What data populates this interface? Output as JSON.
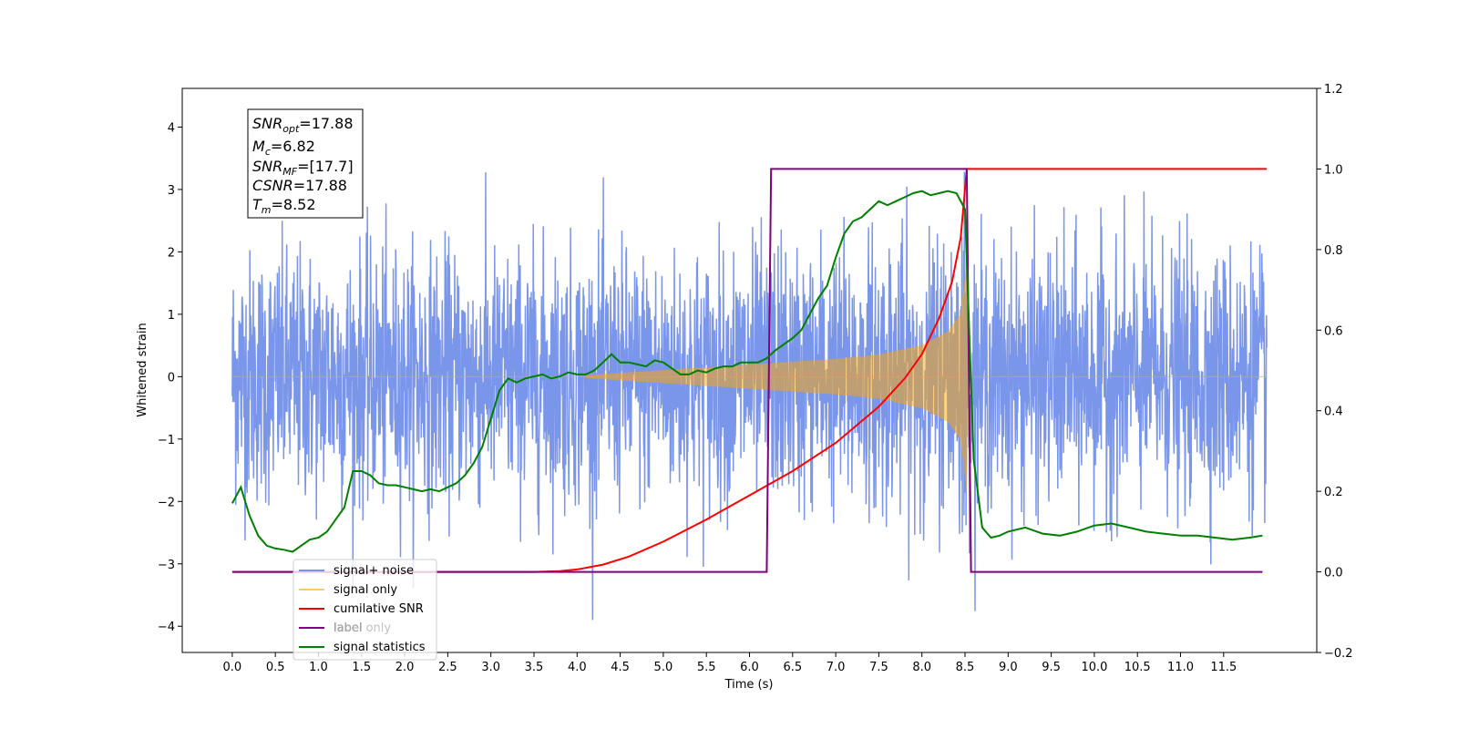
{
  "chart_data": {
    "type": "line",
    "xlabel": "Time (s)",
    "ylabel": "Whitened strain",
    "xlim": [
      -0.58,
      12.58
    ],
    "ylim": [
      -4.42,
      4.62
    ],
    "y2lim": [
      -0.2,
      1.2
    ],
    "x_ticks": [
      "0.0",
      "0.5",
      "1.0",
      "1.5",
      "2.0",
      "2.5",
      "3.0",
      "3.5",
      "4.0",
      "4.5",
      "5.0",
      "5.5",
      "6.0",
      "6.5",
      "7.0",
      "7.5",
      "8.0",
      "8.5",
      "9.0",
      "9.5",
      "10.0",
      "10.5",
      "11.0",
      "11.5"
    ],
    "y_ticks": [
      "4",
      "3",
      "2",
      "1",
      "0",
      "−1",
      "−2",
      "−3",
      "−4"
    ],
    "y2_ticks": [
      "1.2",
      "1.0",
      "0.8",
      "0.6",
      "0.4",
      "0.2",
      "0.0",
      "−0.2"
    ],
    "annotation": {
      "lines": [
        {
          "base": "SNR",
          "sub": "opt",
          "value": "=17.88"
        },
        {
          "base": "M",
          "sub": "c",
          "value": "=6.82"
        },
        {
          "base": "SNR",
          "sub": "MF",
          "value": "=[17.7]"
        },
        {
          "base": "CSNR",
          "sub": "",
          "value": "=17.88"
        },
        {
          "base": "T",
          "sub": "m",
          "value": "=8.52"
        }
      ]
    },
    "legend": {
      "placement": "lower-left",
      "entries": [
        {
          "label": "signal+ noise",
          "color": "#4169E1"
        },
        {
          "label": "signal only",
          "color": "#FFA500"
        },
        {
          "label": "cumilative SNR",
          "color": "#FF0000"
        },
        {
          "label": "label",
          "color": "#800080"
        },
        {
          "label": "label only",
          "color": "#BBBBBB"
        },
        {
          "label": "signal statistics",
          "color": "#008000"
        }
      ]
    },
    "series": [
      {
        "name": "signal+ noise",
        "axis": "left",
        "color": "#4169E1",
        "kind": "noise",
        "t_range": [
          0.0,
          12.0
        ],
        "amplitude_std": 1.0
      },
      {
        "name": "signal only",
        "axis": "left",
        "color": "#FFA500",
        "kind": "chirp",
        "t_start": 4.1,
        "t_merger": 8.52,
        "envelope": [
          [
            4.1,
            0.02
          ],
          [
            5.0,
            0.1
          ],
          [
            6.0,
            0.19
          ],
          [
            7.0,
            0.28
          ],
          [
            7.5,
            0.35
          ],
          [
            8.0,
            0.5
          ],
          [
            8.3,
            0.72
          ],
          [
            8.45,
            1.0
          ],
          [
            8.52,
            1.8
          ],
          [
            8.55,
            0.0
          ]
        ]
      },
      {
        "name": "cumilative SNR",
        "axis": "right",
        "color": "#FF0000",
        "x": [
          0.0,
          3.5,
          3.8,
          4.0,
          4.3,
          4.6,
          5.0,
          5.5,
          6.0,
          6.5,
          7.0,
          7.5,
          7.8,
          8.0,
          8.2,
          8.35,
          8.45,
          8.52,
          8.55,
          12.0
        ],
        "y": [
          0.0,
          0.0,
          0.002,
          0.006,
          0.018,
          0.038,
          0.075,
          0.13,
          0.19,
          0.25,
          0.32,
          0.41,
          0.48,
          0.54,
          0.63,
          0.72,
          0.83,
          1.0,
          1.0,
          1.0
        ]
      },
      {
        "name": "label",
        "axis": "right",
        "color": "#800080",
        "x": [
          0.0,
          6.2,
          6.25,
          8.52,
          8.57,
          11.95
        ],
        "y": [
          0.0,
          0.0,
          1.0,
          1.0,
          0.0,
          0.0
        ]
      },
      {
        "name": "signal statistics",
        "axis": "right",
        "color": "#008000",
        "x": [
          0.0,
          0.1,
          0.2,
          0.3,
          0.4,
          0.5,
          0.6,
          0.7,
          0.8,
          0.9,
          1.0,
          1.1,
          1.2,
          1.3,
          1.4,
          1.5,
          1.6,
          1.7,
          1.8,
          1.9,
          2.0,
          2.1,
          2.2,
          2.3,
          2.4,
          2.5,
          2.6,
          2.7,
          2.8,
          2.9,
          3.0,
          3.1,
          3.2,
          3.3,
          3.4,
          3.5,
          3.6,
          3.7,
          3.8,
          3.9,
          4.0,
          4.1,
          4.2,
          4.3,
          4.4,
          4.5,
          4.6,
          4.7,
          4.8,
          4.9,
          5.0,
          5.1,
          5.2,
          5.3,
          5.4,
          5.5,
          5.6,
          5.7,
          5.8,
          5.9,
          6.0,
          6.1,
          6.2,
          6.3,
          6.4,
          6.5,
          6.6,
          6.7,
          6.8,
          6.9,
          7.0,
          7.1,
          7.2,
          7.3,
          7.4,
          7.5,
          7.6,
          7.7,
          7.8,
          7.9,
          8.0,
          8.1,
          8.2,
          8.3,
          8.4,
          8.5,
          8.6,
          8.7,
          8.8,
          8.9,
          9.0,
          9.2,
          9.4,
          9.6,
          9.8,
          10.0,
          10.2,
          10.4,
          10.6,
          10.8,
          11.0,
          11.2,
          11.4,
          11.6,
          11.8,
          11.95
        ],
        "y": [
          0.17,
          0.21,
          0.14,
          0.09,
          0.065,
          0.058,
          0.055,
          0.05,
          0.065,
          0.08,
          0.085,
          0.1,
          0.13,
          0.16,
          0.25,
          0.25,
          0.24,
          0.22,
          0.215,
          0.215,
          0.21,
          0.205,
          0.2,
          0.205,
          0.2,
          0.21,
          0.22,
          0.24,
          0.27,
          0.31,
          0.38,
          0.45,
          0.48,
          0.47,
          0.48,
          0.485,
          0.49,
          0.48,
          0.485,
          0.495,
          0.49,
          0.49,
          0.5,
          0.52,
          0.54,
          0.52,
          0.52,
          0.515,
          0.51,
          0.525,
          0.52,
          0.505,
          0.49,
          0.49,
          0.5,
          0.495,
          0.505,
          0.51,
          0.51,
          0.52,
          0.52,
          0.52,
          0.53,
          0.55,
          0.565,
          0.58,
          0.6,
          0.64,
          0.68,
          0.71,
          0.78,
          0.84,
          0.87,
          0.88,
          0.9,
          0.92,
          0.91,
          0.92,
          0.93,
          0.94,
          0.945,
          0.935,
          0.94,
          0.945,
          0.94,
          0.9,
          0.28,
          0.11,
          0.085,
          0.09,
          0.1,
          0.11,
          0.095,
          0.09,
          0.1,
          0.115,
          0.12,
          0.11,
          0.1,
          0.095,
          0.09,
          0.09,
          0.085,
          0.08,
          0.085,
          0.09
        ]
      }
    ]
  }
}
